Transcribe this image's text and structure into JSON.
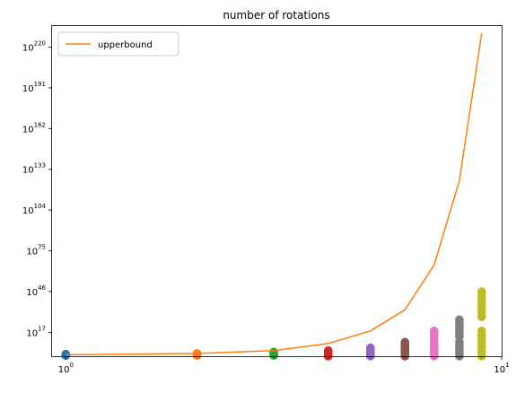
{
  "chart_data": {
    "type": "scatter",
    "title": "number of rotations",
    "xlabel": "",
    "ylabel": "",
    "xscale": "log",
    "yscale": "log",
    "xlim": [
      0.93,
      10
    ],
    "ylim_exponent": [
      0,
      235
    ],
    "x_ticks": [
      {
        "value": 1,
        "base": "10",
        "exp": "0"
      },
      {
        "value": 10,
        "base": "10",
        "exp": "1"
      }
    ],
    "y_ticks": [
      {
        "exp_value": 17,
        "base": "10",
        "exp": "17"
      },
      {
        "exp_value": 46,
        "base": "10",
        "exp": "46"
      },
      {
        "exp_value": 75,
        "base": "10",
        "exp": "75"
      },
      {
        "exp_value": 104,
        "base": "10",
        "exp": "104"
      },
      {
        "exp_value": 133,
        "base": "10",
        "exp": "133"
      },
      {
        "exp_value": 162,
        "base": "10",
        "exp": "162"
      },
      {
        "exp_value": 191,
        "base": "10",
        "exp": "191"
      },
      {
        "exp_value": 220,
        "base": "10",
        "exp": "220"
      }
    ],
    "grid": false,
    "legend": {
      "position": "top-left",
      "entries": [
        "upperbound"
      ]
    },
    "line": {
      "name": "upperbound",
      "color": "#ff7f0e",
      "x": [
        1,
        2,
        3,
        4,
        5,
        6,
        7,
        8,
        9
      ],
      "y_exponent": [
        1,
        2,
        4,
        9,
        18,
        33,
        65,
        125,
        230
      ]
    },
    "scatter_series": [
      {
        "x": 1,
        "color": "#1f77b4",
        "y_exponent": [
          0.5,
          1,
          1.5
        ]
      },
      {
        "x": 2,
        "color": "#ff7f0e",
        "y_exponent": [
          0.5,
          1,
          1.5,
          2
        ]
      },
      {
        "x": 3,
        "color": "#2ca02c",
        "y_exponent": [
          0.5,
          1,
          2,
          3
        ]
      },
      {
        "x": 4,
        "color": "#d62728",
        "y_exponent": [
          0,
          0.5,
          1,
          1.5,
          2,
          3,
          4
        ]
      },
      {
        "x": 5,
        "color": "#9467bd",
        "y_exponent": [
          0,
          0.5,
          1,
          1.5,
          2,
          3,
          4,
          5,
          6
        ]
      },
      {
        "x": 6,
        "color": "#8c564b",
        "y_exponent": [
          0,
          1,
          2,
          3,
          4,
          5,
          6,
          7,
          8,
          9,
          10
        ]
      },
      {
        "x": 7,
        "color": "#e377c2",
        "y_exponent": [
          0,
          1,
          2,
          3,
          4,
          5,
          6,
          8,
          10,
          12,
          14,
          16,
          18
        ]
      },
      {
        "x": 8,
        "color": "#7f7f7f",
        "y_exponent": [
          0,
          2,
          4,
          6,
          8,
          10,
          14,
          16,
          18,
          20,
          22,
          24,
          26
        ]
      },
      {
        "x": 9,
        "color": "#bcbd22",
        "y_exponent": [
          0,
          3,
          6,
          9,
          12,
          15,
          18,
          28,
          31,
          34,
          37,
          40,
          43,
          46
        ]
      }
    ]
  }
}
